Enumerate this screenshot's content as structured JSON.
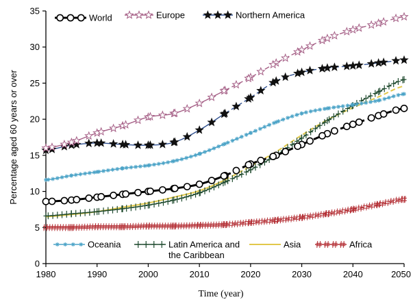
{
  "chart_data": {
    "type": "line",
    "title": "",
    "xlabel": "Time (year)",
    "ylabel": "Percentage aged 60 years or over",
    "xlim": [
      1980,
      2050
    ],
    "ylim": [
      0,
      35
    ],
    "xticks": [
      1980,
      1990,
      2000,
      2010,
      2020,
      2030,
      2040,
      2050
    ],
    "xtick_labels": [
      "1980",
      "1990",
      "2000",
      "2010",
      "2020",
      "2030",
      "2040",
      "2050"
    ],
    "yticks": [
      0,
      5,
      10,
      15,
      20,
      25,
      30,
      35
    ],
    "ytick_labels": [
      "0",
      "5",
      "10",
      "15",
      "20",
      "25",
      "30",
      "35"
    ],
    "grid": false,
    "projection_start_year": 2015,
    "legend_top": [
      {
        "name": "World",
        "series": "world"
      },
      {
        "name": "Europe",
        "series": "europe"
      },
      {
        "name": "Northern America",
        "series": "northern_america"
      }
    ],
    "legend_bottom": [
      {
        "name": "Oceania",
        "series": "oceania"
      },
      {
        "name": "Latin America and",
        "name_line2": "the Caribbean",
        "series": "latin_america"
      },
      {
        "name": "Asia",
        "series": "asia"
      },
      {
        "name": "Africa",
        "series": "africa"
      }
    ],
    "series": [
      {
        "id": "world",
        "name": "World",
        "color": "#000000",
        "marker": "circle",
        "x": [
          1980,
          1985,
          1990,
          1995,
          2000,
          2005,
          2010,
          2015,
          2020,
          2025,
          2030,
          2035,
          2040,
          2045,
          2050
        ],
        "values": [
          8.6,
          8.8,
          9.2,
          9.6,
          10.0,
          10.4,
          11.0,
          12.2,
          13.8,
          15.0,
          16.5,
          18.0,
          19.3,
          20.5,
          21.5
        ]
      },
      {
        "id": "europe",
        "name": "Europe",
        "color": "#a55f86",
        "marker": "star-open",
        "x": [
          1980,
          1985,
          1990,
          1995,
          2000,
          2005,
          2010,
          2015,
          2020,
          2025,
          2030,
          2035,
          2040,
          2045,
          2050
        ],
        "values": [
          16.0,
          16.8,
          18.1,
          19.1,
          20.3,
          20.8,
          22.2,
          24.0,
          25.8,
          27.8,
          29.6,
          31.2,
          32.4,
          33.3,
          34.2
        ]
      },
      {
        "id": "northern_america",
        "name": "Northern America",
        "color": "#2e4f8f",
        "marker": "star-filled",
        "x": [
          1980,
          1985,
          1990,
          1995,
          2000,
          2005,
          2010,
          2015,
          2020,
          2025,
          2030,
          2035,
          2040,
          2045,
          2050
        ],
        "values": [
          15.7,
          16.4,
          16.7,
          16.5,
          16.4,
          16.8,
          18.5,
          20.8,
          23.0,
          25.3,
          26.5,
          27.1,
          27.4,
          27.8,
          28.2
        ]
      },
      {
        "id": "oceania",
        "name": "Oceania",
        "color": "#4ba3c7",
        "marker": "asterisk",
        "x": [
          1980,
          1985,
          1990,
          1995,
          2000,
          2005,
          2010,
          2015,
          2020,
          2025,
          2030,
          2035,
          2040,
          2045,
          2050
        ],
        "values": [
          11.6,
          12.2,
          12.7,
          13.2,
          13.6,
          14.2,
          15.2,
          16.6,
          18.1,
          19.6,
          20.8,
          21.5,
          22.0,
          22.6,
          23.5
        ]
      },
      {
        "id": "latin_america",
        "name": "Latin America and the Caribbean",
        "color": "#1f4a2e",
        "marker": "plus",
        "x": [
          1980,
          1985,
          1990,
          1995,
          2000,
          2005,
          2010,
          2015,
          2020,
          2025,
          2030,
          2035,
          2040,
          2045,
          2050
        ],
        "values": [
          6.6,
          6.9,
          7.2,
          7.6,
          8.1,
          8.8,
          9.8,
          11.3,
          13.0,
          15.0,
          17.4,
          19.8,
          21.9,
          23.8,
          25.5
        ]
      },
      {
        "id": "asia",
        "name": "Asia",
        "color": "#e2c84a",
        "marker": "none",
        "x": [
          1980,
          1985,
          1990,
          1995,
          2000,
          2005,
          2010,
          2015,
          2020,
          2025,
          2030,
          2035,
          2040,
          2045,
          2050
        ],
        "values": [
          6.5,
          6.8,
          7.2,
          7.8,
          8.4,
          9.2,
          10.1,
          11.6,
          13.5,
          15.5,
          17.8,
          19.9,
          21.6,
          23.1,
          24.6
        ]
      },
      {
        "id": "africa",
        "name": "Africa",
        "color": "#b32d33",
        "marker": "hash",
        "x": [
          1980,
          1985,
          1990,
          1995,
          2000,
          2005,
          2010,
          2015,
          2020,
          2025,
          2030,
          2035,
          2040,
          2045,
          2050
        ],
        "values": [
          5.0,
          5.0,
          5.1,
          5.1,
          5.2,
          5.2,
          5.3,
          5.4,
          5.7,
          6.0,
          6.4,
          6.9,
          7.5,
          8.2,
          8.9
        ]
      }
    ]
  }
}
